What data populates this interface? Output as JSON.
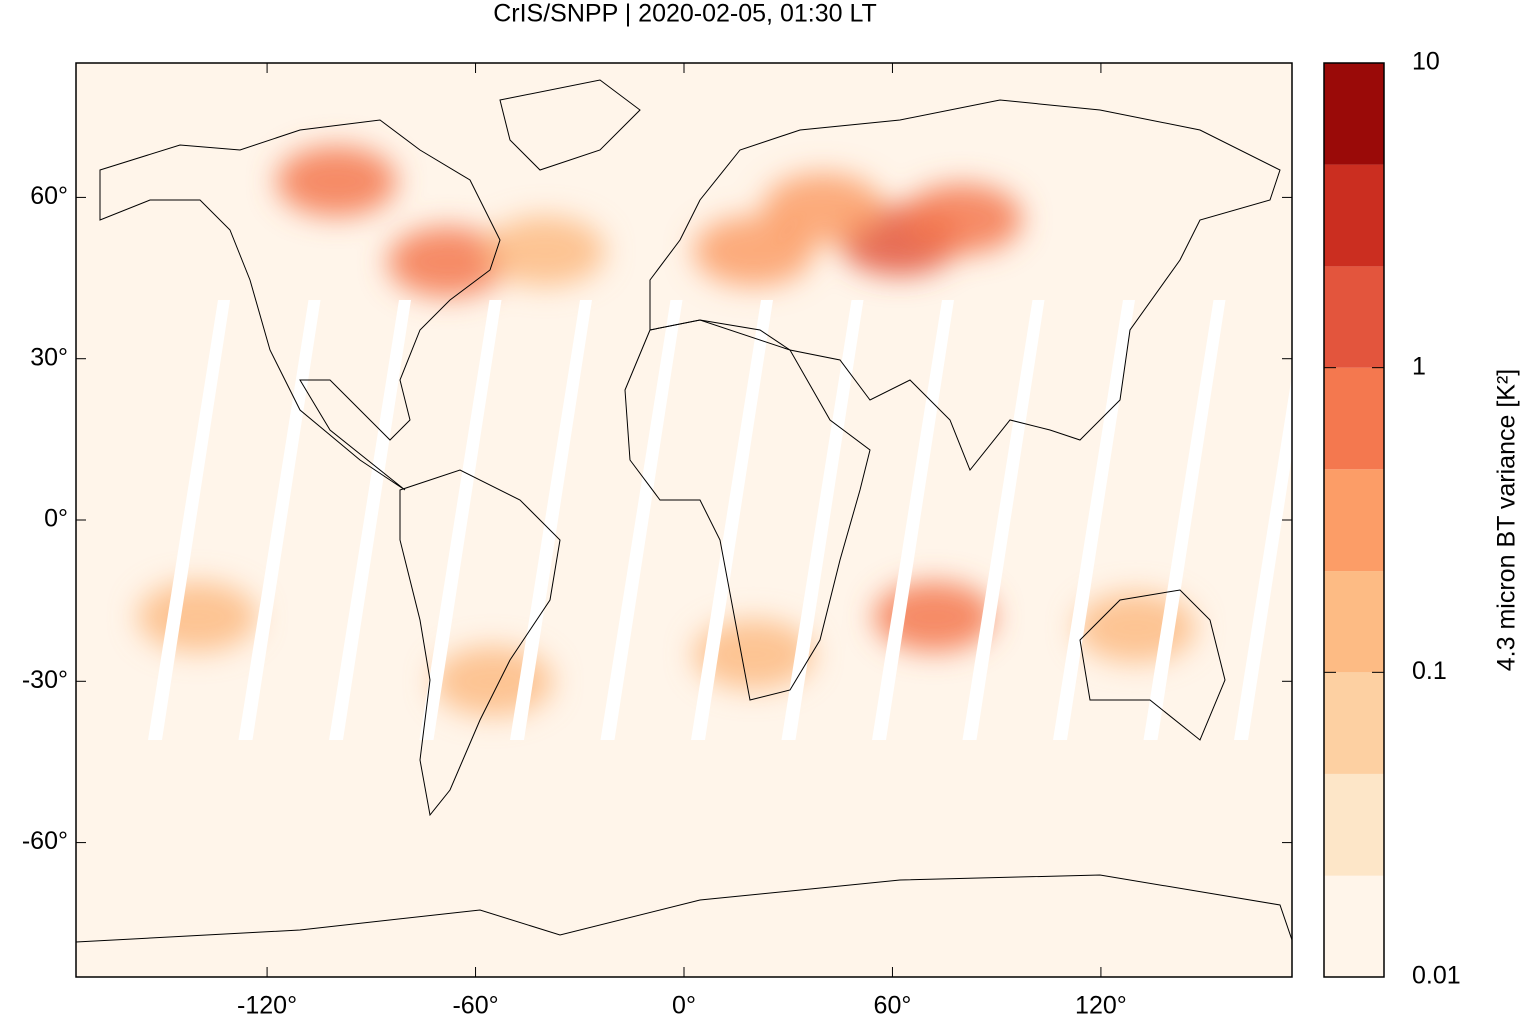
{
  "chart_data": {
    "type": "map",
    "title": "CrIS/SNPP | 2020-02-05, 01:30 LT",
    "xlim": [
      -175,
      175
    ],
    "ylim": [
      -85,
      85
    ],
    "xticks": [
      {
        "value": -120,
        "label": "-120°"
      },
      {
        "value": -60,
        "label": "-60°"
      },
      {
        "value": 0,
        "label": "0°"
      },
      {
        "value": 60,
        "label": "60°"
      },
      {
        "value": 120,
        "label": "120°"
      }
    ],
    "yticks": [
      {
        "value": 60,
        "label": "60°"
      },
      {
        "value": 30,
        "label": "30°"
      },
      {
        "value": 0,
        "label": "0°"
      },
      {
        "value": -30,
        "label": "-30°"
      },
      {
        "value": -60,
        "label": "-60°"
      }
    ],
    "hotspots": [
      {
        "lon": 62,
        "lat": 52,
        "value": 1.0
      },
      {
        "lon": 80,
        "lat": 56,
        "value": 0.6
      },
      {
        "lon": -68,
        "lat": 48,
        "value": 0.6
      },
      {
        "lon": -100,
        "lat": 63,
        "value": 0.5
      },
      {
        "lon": 20,
        "lat": 50,
        "value": 0.3
      },
      {
        "lon": 40,
        "lat": 58,
        "value": 0.25
      },
      {
        "lon": -40,
        "lat": 50,
        "value": 0.2
      },
      {
        "lon": 72,
        "lat": -18,
        "value": 0.5
      },
      {
        "lon": -55,
        "lat": -30,
        "value": 0.2
      },
      {
        "lon": -140,
        "lat": -18,
        "value": 0.15
      },
      {
        "lon": 130,
        "lat": -20,
        "value": 0.15
      },
      {
        "lon": 20,
        "lat": -25,
        "value": 0.15
      }
    ],
    "colorbar": {
      "label": "4.3 micron BT variance [K²]",
      "scale": "log",
      "lim": [
        0.01,
        10
      ],
      "ticks": [
        0.01,
        0.1,
        1,
        10
      ],
      "levels": [
        0.01,
        0.0215,
        0.0464,
        0.1,
        0.215,
        0.464,
        1,
        2.15,
        4.64,
        10
      ],
      "colors": [
        "#fff5ea",
        "#fde6c8",
        "#fdd0a2",
        "#fdbb84",
        "#fc9d67",
        "#f4784f",
        "#e3553d",
        "#cb2e20",
        "#9a0a08"
      ]
    }
  }
}
